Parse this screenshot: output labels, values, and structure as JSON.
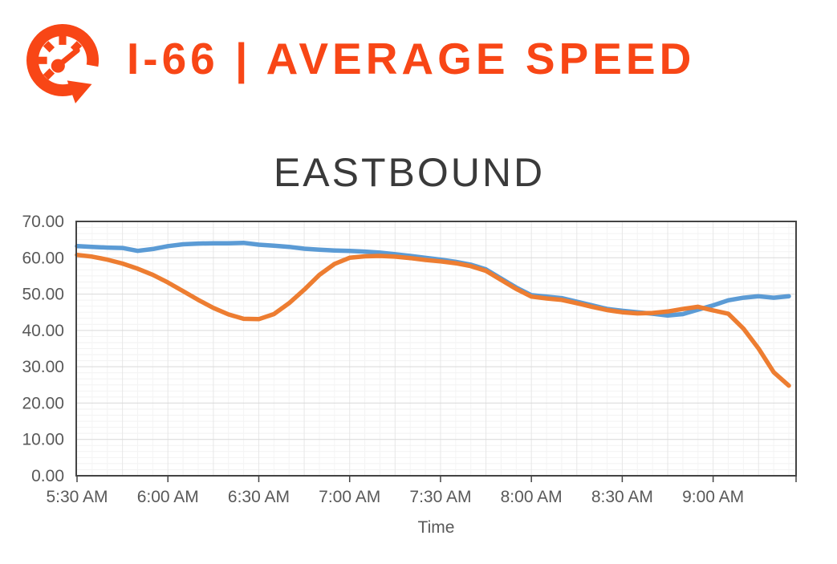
{
  "header": {
    "title": "I-66 | AVERAGE SPEED",
    "icon": "speedometer-icon",
    "accent_color": "#F84616"
  },
  "chart_data": {
    "type": "line",
    "title": "EASTBOUND",
    "xlabel": "Time",
    "ylabel": "",
    "ylim": [
      0,
      70
    ],
    "y_tick_interval": 10,
    "y_tick_format": "2-decimals",
    "grid": "major and minor, both axes",
    "legend": "none",
    "x_tick_labels": [
      "5:30 AM",
      "6:00 AM",
      "6:30 AM",
      "7:00 AM",
      "7:30 AM",
      "8:00 AM",
      "8:30 AM",
      "9:00 AM"
    ],
    "x": [
      "5:30 AM",
      "5:35 AM",
      "5:40 AM",
      "5:45 AM",
      "5:50 AM",
      "5:55 AM",
      "6:00 AM",
      "6:05 AM",
      "6:10 AM",
      "6:15 AM",
      "6:20 AM",
      "6:25 AM",
      "6:30 AM",
      "6:35 AM",
      "6:40 AM",
      "6:45 AM",
      "6:50 AM",
      "6:55 AM",
      "7:00 AM",
      "7:05 AM",
      "7:10 AM",
      "7:15 AM",
      "7:20 AM",
      "7:25 AM",
      "7:30 AM",
      "7:35 AM",
      "7:40 AM",
      "7:45 AM",
      "7:50 AM",
      "7:55 AM",
      "8:00 AM",
      "8:05 AM",
      "8:10 AM",
      "8:15 AM",
      "8:20 AM",
      "8:25 AM",
      "8:30 AM",
      "8:35 AM",
      "8:40 AM",
      "8:45 AM",
      "8:50 AM",
      "8:55 AM",
      "9:00 AM",
      "9:05 AM",
      "9:10 AM",
      "9:15 AM",
      "9:20 AM",
      "9:25 AM"
    ],
    "series": [
      {
        "name": "blue-line",
        "color": "#5B9BD5",
        "values": [
          63.2,
          63.0,
          62.8,
          62.7,
          61.9,
          62.4,
          63.2,
          63.7,
          63.9,
          64.0,
          64.0,
          64.1,
          63.6,
          63.3,
          63.0,
          62.5,
          62.2,
          62.0,
          61.9,
          61.7,
          61.4,
          61.0,
          60.5,
          60.0,
          59.5,
          58.9,
          58.1,
          56.8,
          54.3,
          51.8,
          49.7,
          49.3,
          48.9,
          47.9,
          46.9,
          45.9,
          45.4,
          45.0,
          44.6,
          44.1,
          44.5,
          45.7,
          46.9,
          48.3,
          49.0,
          49.4,
          49.0,
          49.4
        ]
      },
      {
        "name": "orange-line",
        "color": "#ED7D31",
        "values": [
          60.8,
          60.3,
          59.5,
          58.4,
          57.0,
          55.3,
          53.2,
          50.8,
          48.4,
          46.2,
          44.4,
          43.2,
          43.1,
          44.5,
          47.5,
          51.2,
          55.3,
          58.3,
          60.0,
          60.4,
          60.5,
          60.3,
          59.9,
          59.4,
          59.0,
          58.5,
          57.7,
          56.4,
          53.9,
          51.4,
          49.3,
          48.8,
          48.4,
          47.5,
          46.5,
          45.6,
          45.0,
          44.7,
          44.8,
          45.2,
          45.9,
          46.5,
          45.5,
          44.6,
          40.5,
          35.0,
          28.5,
          24.8
        ]
      }
    ]
  }
}
